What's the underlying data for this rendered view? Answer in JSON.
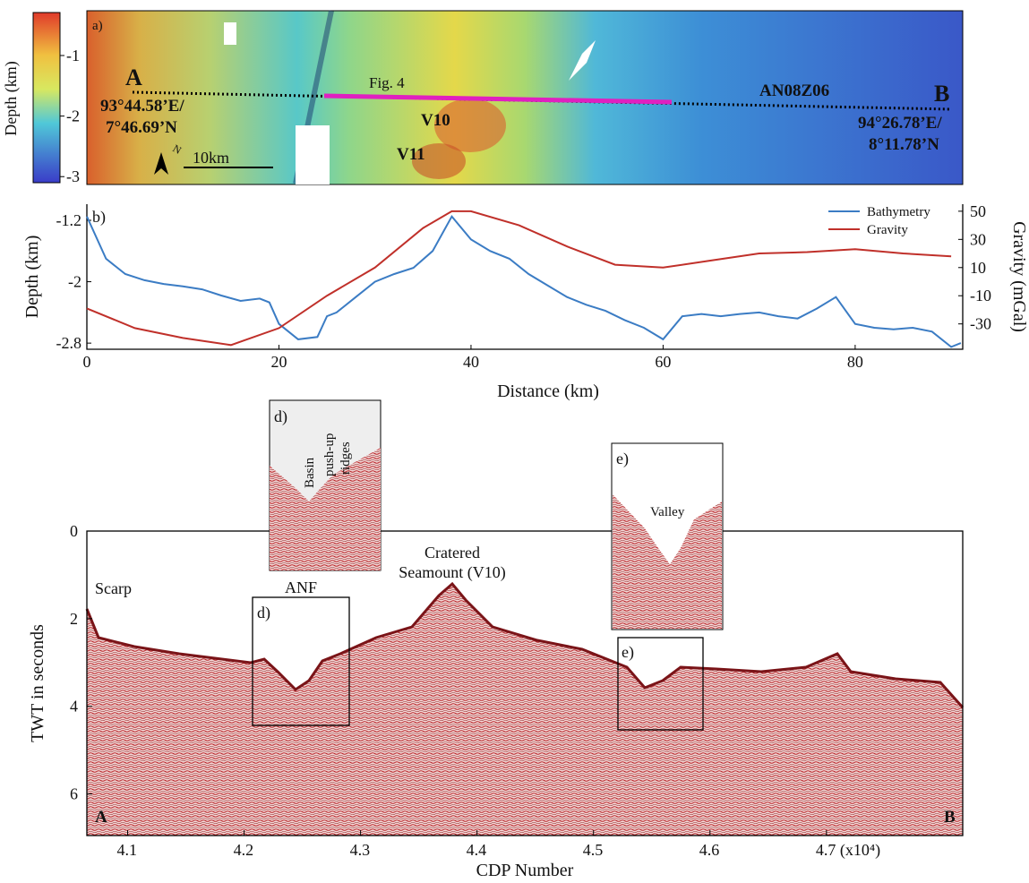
{
  "chart_data": [
    {
      "type": "map",
      "panel_label": "a)",
      "colorbar": {
        "label": "Depth (km)",
        "lim": [
          -3.1,
          -0.29
        ],
        "ticks": [
          -1,
          -2,
          -3
        ]
      },
      "annotations": {
        "start": "A",
        "end": "B",
        "start_coords": [
          "93°44.58’E/",
          "7°46.69’N"
        ],
        "end_coords": [
          "94°26.78’E/",
          "8°11.78’N"
        ],
        "profile_segment": "Fig. 4",
        "profile": "AN08Z06",
        "volcanoes": [
          "V10",
          "V11"
        ],
        "scale_bar": "10km",
        "north": "N"
      }
    },
    {
      "type": "line",
      "panel_label": "b)",
      "x_label": "Distance (km)",
      "y_label": "Depth (km)",
      "y2_label": "Gravity (mGal)",
      "xlim": [
        0,
        91.2
      ],
      "xticks": [
        0,
        20,
        40,
        60,
        80
      ],
      "ylim": [
        -2.88,
        -0.99
      ],
      "yticks": [
        -1.2,
        -2,
        -2.8
      ],
      "y2lim": [
        -48,
        55
      ],
      "y2ticks": [
        50,
        30,
        10,
        -10,
        -30
      ],
      "legend": "upper right",
      "series": [
        {
          "name": "Bathymetry",
          "color": "#3b7cc4",
          "x": [
            0,
            2,
            4,
            6,
            8,
            10,
            12,
            14,
            16,
            18,
            19,
            20,
            22,
            24,
            25,
            26,
            28,
            30,
            32,
            34,
            36,
            38,
            40,
            42,
            44,
            46,
            48,
            50,
            52,
            54,
            56,
            58,
            60,
            62,
            64,
            66,
            68,
            70,
            72,
            74,
            76,
            78,
            80,
            82,
            84,
            86,
            88,
            90,
            91
          ],
          "values": [
            -1.15,
            -1.7,
            -1.9,
            -1.98,
            -2.03,
            -2.06,
            -2.1,
            -2.18,
            -2.25,
            -2.22,
            -2.27,
            -2.55,
            -2.75,
            -2.72,
            -2.45,
            -2.4,
            -2.2,
            -2.0,
            -1.9,
            -1.82,
            -1.6,
            -1.15,
            -1.45,
            -1.6,
            -1.7,
            -1.9,
            -2.05,
            -2.2,
            -2.3,
            -2.38,
            -2.5,
            -2.6,
            -2.75,
            -2.45,
            -2.42,
            -2.45,
            -2.42,
            -2.4,
            -2.45,
            -2.48,
            -2.35,
            -2.2,
            -2.55,
            -2.6,
            -2.62,
            -2.6,
            -2.65,
            -2.85,
            -2.8
          ]
        },
        {
          "name": "Gravity",
          "color": "#c0302a",
          "axis": "y2",
          "x": [
            0,
            5,
            10,
            15,
            20,
            25,
            30,
            35,
            38,
            40,
            45,
            50,
            55,
            60,
            65,
            70,
            75,
            80,
            85,
            90
          ],
          "values": [
            -19,
            -33,
            -40,
            -45,
            -33,
            -10,
            10,
            38,
            50,
            50,
            40,
            25,
            12,
            10,
            15,
            20,
            21,
            23,
            20,
            18
          ]
        }
      ]
    },
    {
      "type": "seismic",
      "x_label": "CDP Number",
      "y_label": "TWT in seconds",
      "y_inverted": true,
      "xlim": [
        4.065,
        4.817
      ],
      "xticks": [
        4.1,
        4.2,
        4.3,
        4.4,
        4.5,
        4.6,
        {
          "value": 4.7,
          "label": "4.7 (x10⁴)"
        }
      ],
      "ylim": [
        0,
        6.95
      ],
      "yticks": [
        0,
        2,
        4,
        6
      ],
      "annotations": {
        "scarp": "Scarp",
        "fault": "ANF",
        "seamount": [
          "Cratered",
          "Seamount (V10)"
        ],
        "basin": "Basin",
        "ridges": [
          "push-up",
          "ridges"
        ],
        "valley": "Valley",
        "start": "A",
        "end": "B",
        "inset_d": "d)",
        "inset_e": "e)"
      }
    }
  ]
}
